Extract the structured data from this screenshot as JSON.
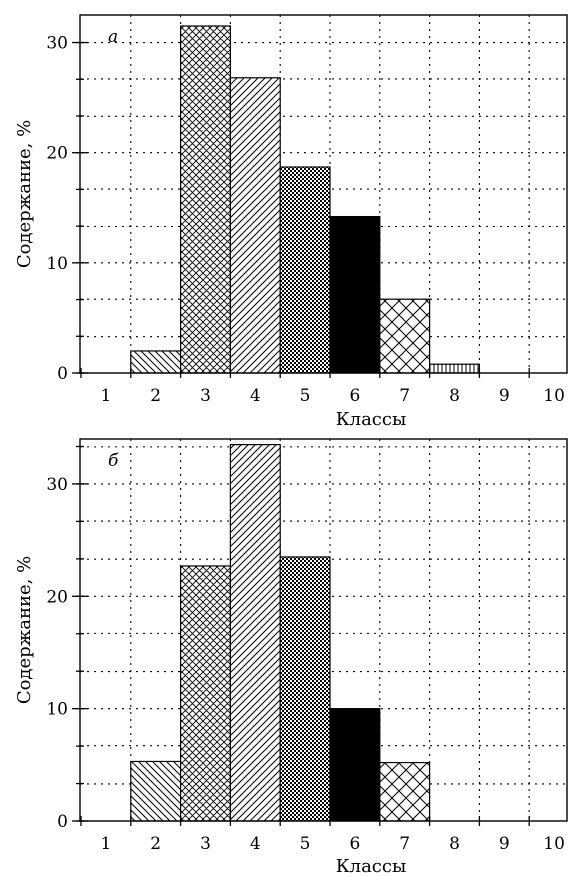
{
  "chart_data": [
    {
      "type": "bar",
      "panel_label": "а",
      "xlabel": "Классы",
      "ylabel": "Содержание, %",
      "categories": [
        "1",
        "2",
        "3",
        "4",
        "5",
        "6",
        "7",
        "8",
        "9",
        "10"
      ],
      "values": [
        0,
        2,
        31.5,
        26.8,
        18.7,
        14.2,
        6.7,
        0.8,
        0,
        0
      ],
      "ylim": [
        0,
        32.5
      ],
      "yticks": [
        0,
        10,
        20,
        30
      ],
      "grid": true
    },
    {
      "type": "bar",
      "panel_label": "б",
      "xlabel": "Классы",
      "ylabel": "Содержание, %",
      "categories": [
        "1",
        "2",
        "3",
        "4",
        "5",
        "6",
        "7",
        "8",
        "9",
        "10"
      ],
      "values": [
        0,
        5.3,
        22.7,
        33.5,
        23.5,
        10,
        5.2,
        0,
        0,
        0
      ],
      "ylim": [
        0,
        34
      ],
      "yticks": [
        0,
        10,
        20,
        30
      ],
      "grid": true
    }
  ]
}
